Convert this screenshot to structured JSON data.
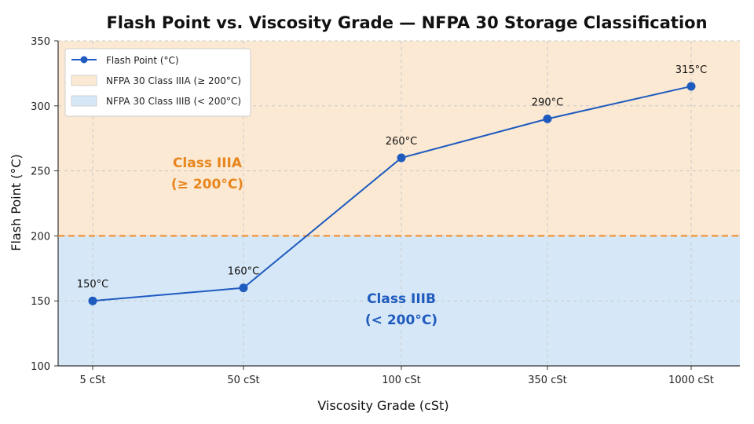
{
  "chart_data": {
    "type": "line",
    "title": "Flash Point vs. Viscosity Grade — NFPA 30 Storage Classification",
    "xlabel": "Viscosity Grade (cSt)",
    "ylabel": "Flash Point (°C)",
    "categories": [
      "5 cSt",
      "50 cSt",
      "100 cSt",
      "350 cSt",
      "1000 cSt"
    ],
    "series": [
      {
        "name": "Flash Point (°C)",
        "values": [
          150,
          160,
          260,
          290,
          315
        ],
        "labels": [
          "150°C",
          "160°C",
          "260°C",
          "290°C",
          "315°C"
        ],
        "color": "#1f5bbf"
      }
    ],
    "ylim": [
      100,
      350
    ],
    "yticks": [
      100,
      150,
      200,
      250,
      300,
      350
    ],
    "threshold": {
      "value": 200,
      "color": "#f08a24"
    },
    "regions": [
      {
        "name": "NFPA 30 Class IIIA (≥ 200°C)",
        "from": 200,
        "to": 350,
        "color": "#fbe9d3",
        "label_line1": "Class IIIA",
        "label_line2": "(≥ 200°C)",
        "label_color": "#e8861e"
      },
      {
        "name": "NFPA 30 Class IIIB (< 200°C)",
        "from": 100,
        "to": 200,
        "color": "#d6e8f8",
        "label_line1": "Class IIIB",
        "label_line2": "(< 200°C)",
        "label_color": "#1f5bbf"
      }
    ],
    "grid": true,
    "legend_position": "top-left"
  }
}
